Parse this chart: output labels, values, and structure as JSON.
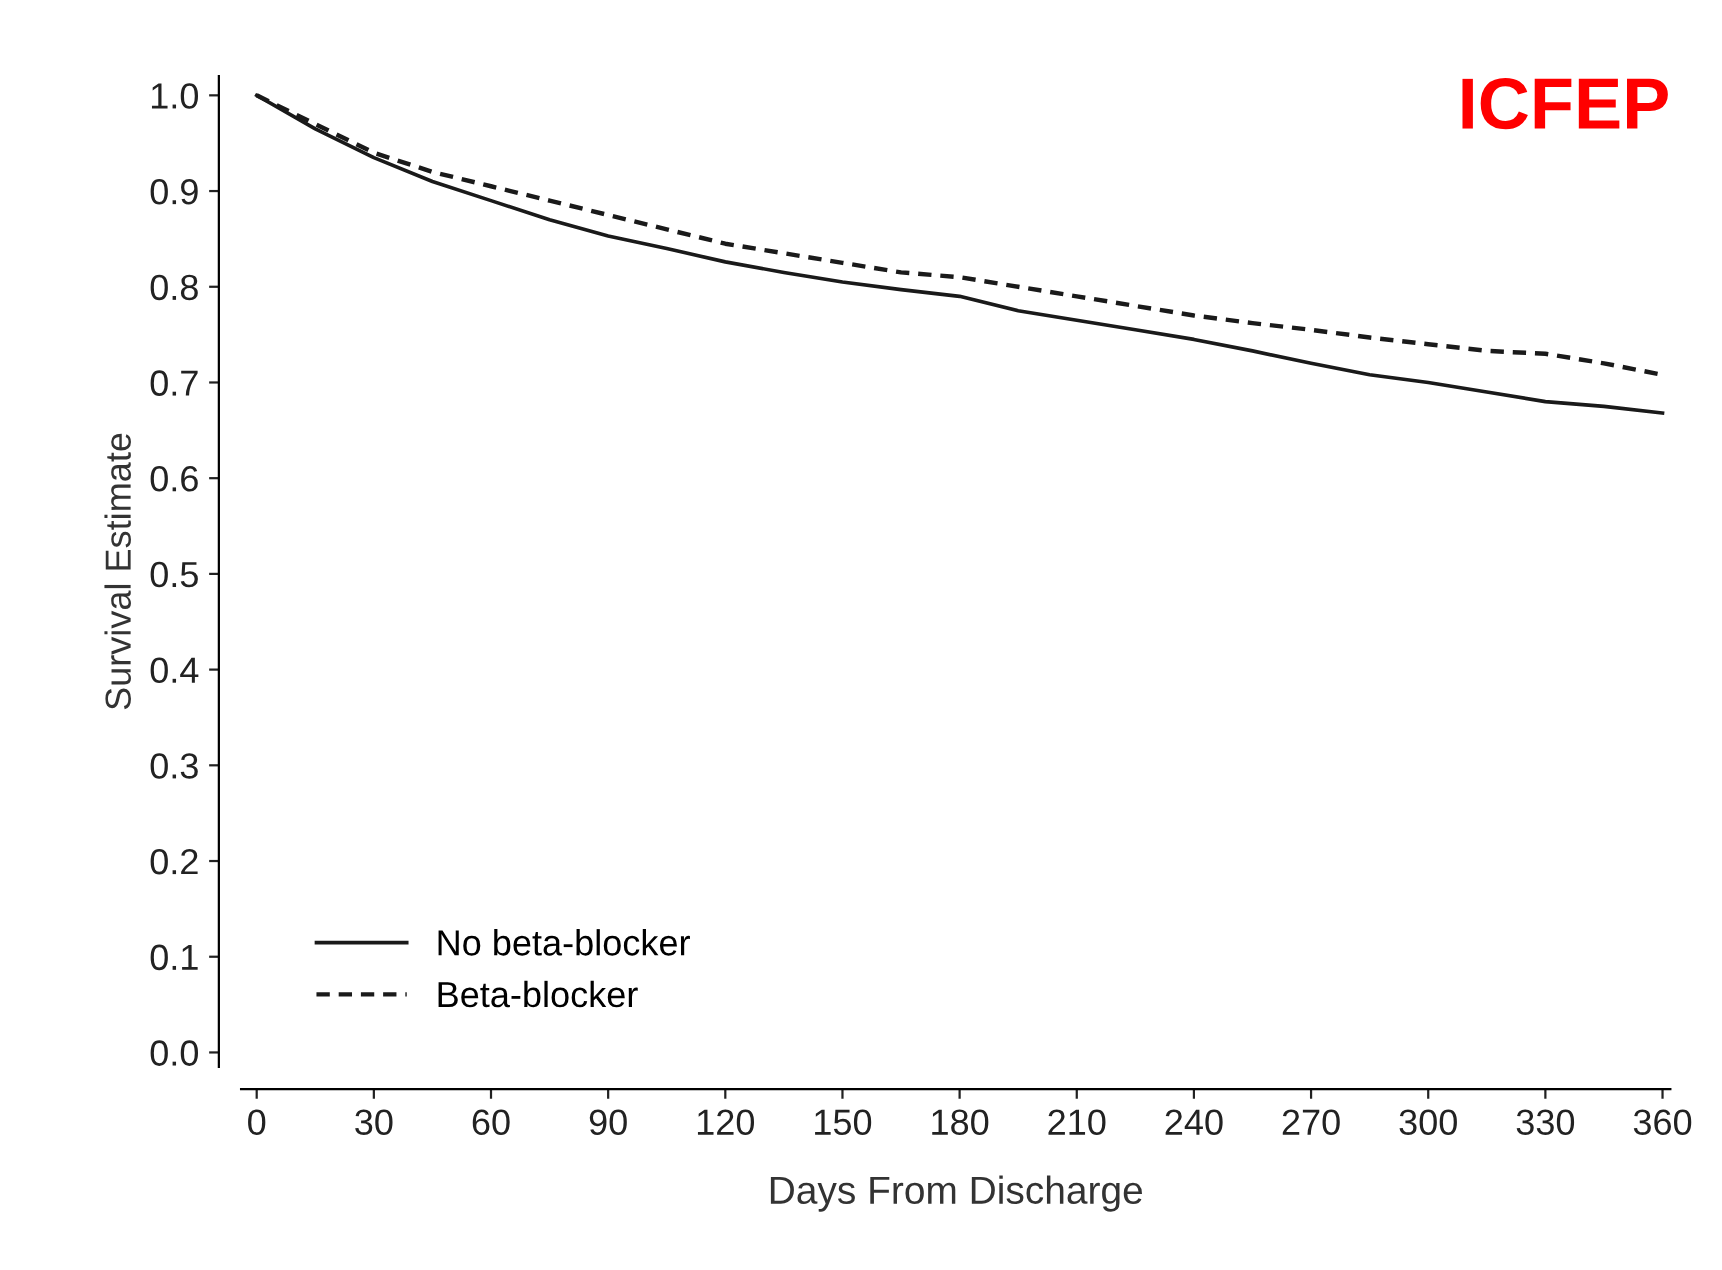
{
  "chart_data": {
    "type": "line",
    "title": "ICFEP",
    "xlabel": "Days From Discharge",
    "ylabel": "Survival Estimate",
    "x": [
      0,
      15,
      30,
      45,
      60,
      75,
      90,
      105,
      120,
      135,
      150,
      165,
      180,
      195,
      210,
      225,
      240,
      255,
      270,
      285,
      300,
      315,
      330,
      345,
      360
    ],
    "series": [
      {
        "name": "No beta-blocker",
        "color": "#1a1a1a",
        "line_style": "solid",
        "values": [
          1.0,
          0.965,
          0.935,
          0.91,
          0.89,
          0.87,
          0.853,
          0.84,
          0.826,
          0.815,
          0.805,
          0.797,
          0.79,
          0.775,
          0.765,
          0.755,
          0.745,
          0.733,
          0.72,
          0.708,
          0.7,
          0.69,
          0.68,
          0.675,
          0.668
        ]
      },
      {
        "name": "Beta-blocker",
        "color": "#1a1a1a",
        "line_style": "dashed",
        "values": [
          1.0,
          0.97,
          0.94,
          0.92,
          0.905,
          0.89,
          0.875,
          0.86,
          0.845,
          0.835,
          0.825,
          0.815,
          0.81,
          0.8,
          0.79,
          0.78,
          0.77,
          0.762,
          0.755,
          0.747,
          0.74,
          0.733,
          0.73,
          0.72,
          0.708
        ]
      }
    ],
    "xlim": [
      -4,
      362
    ],
    "ylim": [
      -0.015,
      1.02
    ],
    "xticks": [
      0,
      30,
      60,
      90,
      120,
      150,
      180,
      210,
      240,
      270,
      300,
      330,
      360
    ],
    "yticks": [
      {
        "value": 0,
        "label": "0.0"
      },
      0.1,
      0.2,
      0.3,
      0.4,
      0.5,
      0.6,
      0.7,
      0.8,
      0.9,
      {
        "value": 1,
        "label": "1.0"
      }
    ],
    "grid": false,
    "legend": "bottom left",
    "marker": "none"
  }
}
